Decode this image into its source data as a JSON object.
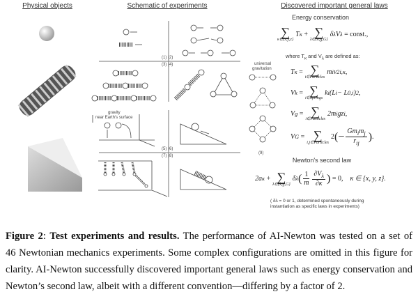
{
  "columns": {
    "physical": "Physical objects",
    "schematic": "Schematic of experiments",
    "laws": "Discovered important general laws"
  },
  "schematic_labels": {
    "p12": "(1) (2)",
    "p34": "(3) (4)",
    "p56": "(5) (6)",
    "p78": "(7) (8)",
    "gravity": "gravity",
    "surface": "near Earth's surface",
    "p9": "(9)",
    "universal": "universal",
    "gravitation": "gravitation"
  },
  "laws": {
    "energy_title": "Energy conservation",
    "eq1": {
      "t1": "T",
      "t1s": "κ",
      "plus": "+",
      "sum1_range": "κ∈{x,y,z}",
      "sum2_range": "λ∈{k,g,G}",
      "t2": "δ",
      "t2s": "λ",
      "t3": "V",
      "t3s": "λ",
      "rhs": "= const.,"
    },
    "where": "where T",
    "where_s1": "κ",
    "where_mid": " and V",
    "where_s2": "λ",
    "where_end": " are defined as:",
    "T": {
      "lhs": "T",
      "lhs_s": "κ",
      "eq": "=",
      "range": "i∈Particles",
      "body": "m",
      "body_s": "i",
      "body2": "v",
      "body2_sup": "2",
      "body2_s": "i,κ",
      "end": ","
    },
    "Vk": {
      "lhs": "V",
      "lhs_s": "k",
      "eq": "=",
      "range": "i∈Springs",
      "body": "k",
      "body_s": "i",
      "body2": "(L",
      "body2_s": "i",
      "body3": " − L",
      "body3_s": "0,i",
      "body4": ")",
      "body4_sup": "2",
      "end": ","
    },
    "Vg": {
      "lhs": "V",
      "lhs_s": "g",
      "eq": "=",
      "range": "i∈Particles",
      "body": "2m",
      "body_s": "i",
      "body2": "gz",
      "body2_s": "i",
      "end": ","
    },
    "VG": {
      "lhs": "V",
      "lhs_s": "G",
      "eq": "=",
      "range": "i,j∈Particles",
      "coef": "2",
      "open": "(−",
      "num": "Gm",
      "num_s1": "i",
      "num2": "m",
      "num_s2": "j",
      "den": "r",
      "den_s": "ij",
      "close": ")",
      "end": "."
    },
    "newton_title": "Newton's second law",
    "N": {
      "lhs": "2a",
      "lhs_s": "κ",
      "plus": "+",
      "range": "λ∈{k,g,G}",
      "d": "δ",
      "d_s": "λ",
      "open": "(",
      "f1n": "1",
      "f1d": "m",
      "f2n": "∂V",
      "f2n_s": "λ",
      "f2d": "∂κ",
      "close": ")",
      "rhs": "= 0,",
      "cond": "κ ∈ {x, y, z}."
    },
    "note1": "( δλ = 0 or 1, determined spontaneously during",
    "note2": "instantiation as specific laws in experiments)"
  },
  "caption": {
    "fig": "Figure 2",
    "colon": ": ",
    "bold": "Test experiments and results.",
    "l1": " The performance of AI-Newton was tested on a set of",
    "l2": "46 Newtonian mechanics experiments. Some complex configurations are omitted in this figure for",
    "l3": "clarity. AI-Newton successfully discovered important general laws such as energy conservation and",
    "l4": "Newton’s second law, albeit with a different convention—differing by a factor of 2."
  }
}
